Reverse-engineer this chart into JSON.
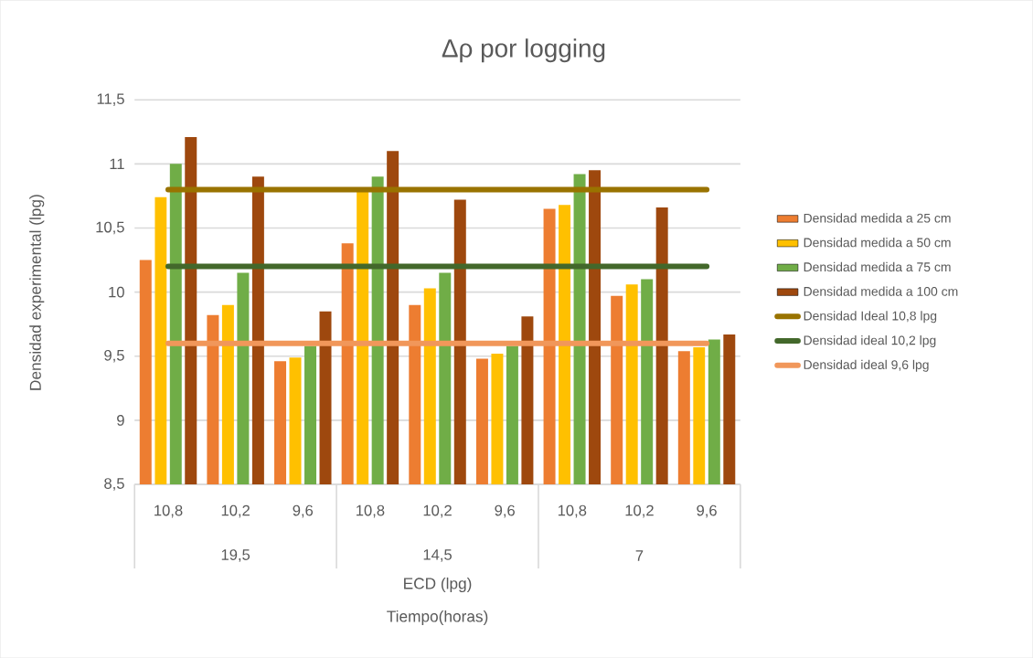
{
  "chart_data": {
    "type": "bar",
    "title": "Δρ por logging",
    "xlabel": "ECD (lpg)",
    "ylabel": "Densidad experimental (lpg)",
    "categories": [
      "10,8",
      "10,2",
      "9,6",
      "10,8",
      "10,2",
      "9,6",
      "10,8",
      "10,2",
      "9,6"
    ],
    "annotations": [
      "19,5",
      "14,5",
      "7",
      "Tiempo(horas)"
    ],
    "series": [
      {
        "name": "Densidad medida a 25 cm",
        "color": "#ed7d31",
        "values": [
          10.25,
          9.82,
          9.46,
          10.38,
          9.9,
          9.48,
          10.65,
          9.97,
          9.54
        ]
      },
      {
        "name": "Densidad medida a 50 cm",
        "color": "#ffc000",
        "values": [
          10.74,
          9.9,
          9.49,
          10.8,
          10.03,
          9.52,
          10.68,
          10.06,
          9.57
        ]
      },
      {
        "name": "Densidad medida a 75 cm",
        "color": "#70ad47",
        "values": [
          11.0,
          10.15,
          9.58,
          10.9,
          10.15,
          9.58,
          10.92,
          10.1,
          9.63
        ]
      },
      {
        "name": "Densidad medida a 100 cm",
        "color": "#9e480e",
        "values": [
          11.21,
          10.9,
          9.85,
          11.1,
          10.72,
          9.81,
          10.95,
          10.66,
          9.67
        ]
      },
      {
        "name": "Densidad Ideal 10,8 lpg",
        "type": "line",
        "color": "#997300",
        "values": [
          10.8,
          10.8,
          10.8,
          10.8,
          10.8,
          10.8,
          10.8,
          10.8,
          10.8
        ]
      },
      {
        "name": "Densidad ideal 10,2 lpg",
        "type": "line",
        "color": "#43682b",
        "values": [
          10.2,
          10.2,
          10.2,
          10.2,
          10.2,
          10.2,
          10.2,
          10.2,
          10.2
        ]
      },
      {
        "name": "Densidad ideal 9,6 lpg",
        "type": "line",
        "color": "#f1975a",
        "values": [
          9.6,
          9.6,
          9.6,
          9.6,
          9.6,
          9.6,
          9.6,
          9.6,
          9.6
        ]
      }
    ],
    "ylim": [
      8.5,
      11.5
    ],
    "yticks": [
      {
        "value": 8.5,
        "label": "8,5"
      },
      9,
      {
        "value": 9.5,
        "label": "9,5"
      },
      10,
      {
        "value": 10.5,
        "label": "10,5"
      },
      11,
      {
        "value": 11.5,
        "label": "11,5"
      }
    ],
    "grid": "y",
    "legend": "right"
  }
}
